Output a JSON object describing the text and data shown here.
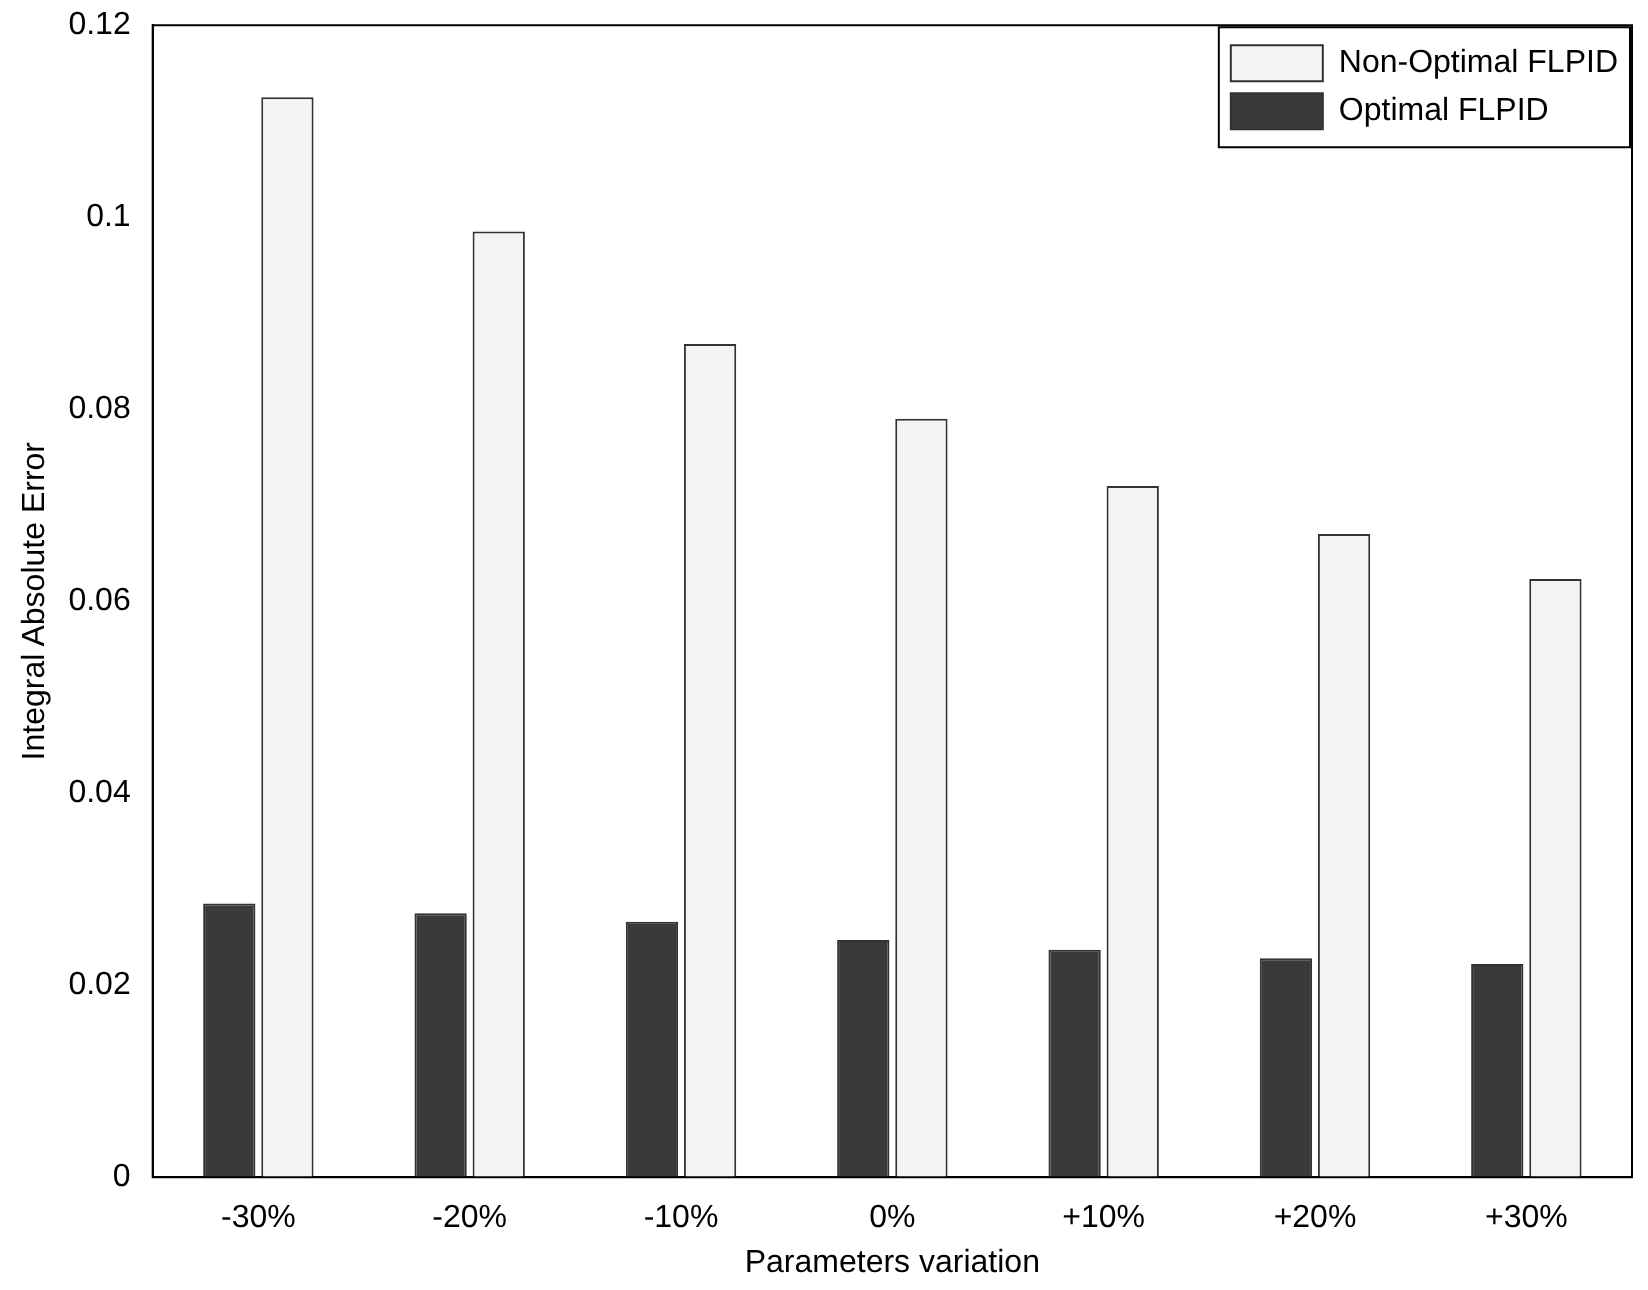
{
  "chart_data": {
    "type": "bar",
    "xlabel": "Parameters variation",
    "ylabel": "Integral Absolute Error",
    "categories": [
      "-30%",
      "-20%",
      "-10%",
      "0%",
      "+10%",
      "+20%",
      "+30%"
    ],
    "series": [
      {
        "name": "Optimal FLPID",
        "color": "#3a3a3a",
        "values": [
          0.0285,
          0.0275,
          0.0266,
          0.0247,
          0.0237,
          0.0228,
          0.0222
        ]
      },
      {
        "name": "Non-Optimal FLPID",
        "color": "#f4f4f4",
        "values": [
          0.1125,
          0.0985,
          0.0868,
          0.079,
          0.072,
          0.067,
          0.0623
        ]
      }
    ],
    "ylim": [
      0,
      0.12
    ],
    "yticks": [
      0,
      0.02,
      0.04,
      0.06,
      0.08,
      0.1,
      0.12
    ],
    "grid": false,
    "legend": "top right"
  }
}
